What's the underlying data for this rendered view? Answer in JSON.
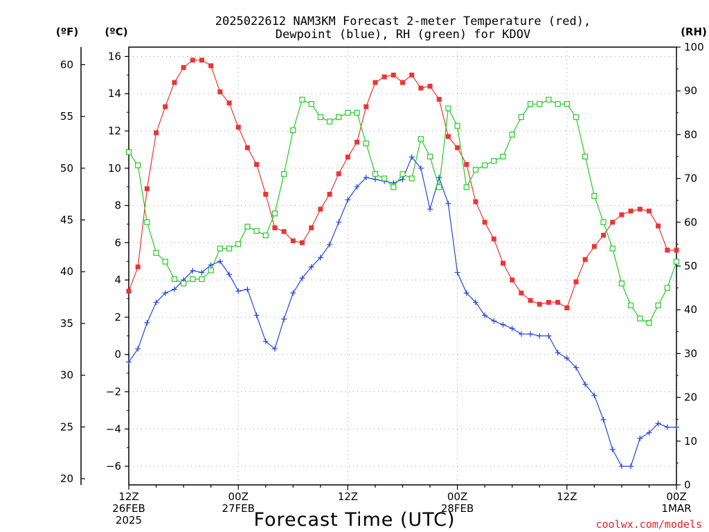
{
  "title": {
    "line1": "2025022612 NAM3KM Forecast 2-meter Temperature (red),",
    "line2": "Dewpoint (blue), RH (green) for KDOV"
  },
  "units": {
    "f": "(ºF)",
    "c": "(ºC)",
    "rh": "(RH)"
  },
  "xlabel": "Forecast Time (UTC)",
  "credit": "coolwx.com/models",
  "colors": {
    "temperature": "#ee3333",
    "dewpoint": "#2244dd",
    "rh": "#22cc22",
    "credit": "#dd2222"
  },
  "chart_data": {
    "type": "line",
    "x_unit": "forecast hour",
    "xlim": [
      0,
      60
    ],
    "x_ticks": [
      {
        "hour": 0,
        "lines": [
          "12Z",
          "26FEB",
          "2025"
        ]
      },
      {
        "hour": 12,
        "lines": [
          "00Z",
          "27FEB"
        ]
      },
      {
        "hour": 24,
        "lines": [
          "12Z"
        ]
      },
      {
        "hour": 36,
        "lines": [
          "00Z",
          "28FEB"
        ]
      },
      {
        "hour": 48,
        "lines": [
          "12Z"
        ]
      },
      {
        "hour": 60,
        "lines": [
          "00Z",
          "1MAR"
        ]
      }
    ],
    "y_celsius": {
      "lim": [
        -7,
        16.5
      ],
      "ticks": [
        "16",
        "14",
        "12",
        "10",
        "8",
        "6",
        "4",
        "2",
        "0",
        "−2",
        "−4",
        "−6"
      ]
    },
    "y_fahrenheit": {
      "lim": [
        19.4,
        61.7
      ],
      "ticks": [
        "60",
        "55",
        "50",
        "45",
        "40",
        "35",
        "30",
        "25",
        "20"
      ]
    },
    "y_rh": {
      "lim": [
        0,
        100
      ],
      "ticks": [
        "100",
        "90",
        "80",
        "70",
        "60",
        "50",
        "40",
        "30",
        "20",
        "10",
        "0"
      ]
    },
    "x": [
      0,
      1,
      2,
      3,
      4,
      5,
      6,
      7,
      8,
      9,
      10,
      11,
      12,
      13,
      14,
      15,
      16,
      17,
      18,
      19,
      20,
      21,
      22,
      23,
      24,
      25,
      26,
      27,
      28,
      29,
      30,
      31,
      32,
      33,
      34,
      35,
      36,
      37,
      38,
      39,
      40,
      41,
      42,
      43,
      44,
      45,
      46,
      47,
      48,
      49,
      50,
      51,
      52,
      53,
      54,
      55,
      56,
      57,
      58,
      59,
      60
    ],
    "series": [
      {
        "name": "2-meter Temperature",
        "unit": "C",
        "marker": "filled-square",
        "values": [
          3.4,
          4.7,
          8.9,
          11.9,
          13.3,
          14.6,
          15.4,
          15.8,
          15.8,
          15.5,
          14.1,
          13.5,
          12.2,
          11.1,
          10.2,
          8.6,
          6.8,
          6.6,
          6.1,
          6.0,
          6.8,
          7.8,
          8.6,
          9.7,
          10.6,
          11.4,
          13.3,
          14.6,
          14.9,
          15.0,
          14.6,
          15.0,
          14.3,
          14.4,
          13.7,
          11.7,
          11.1,
          10.2,
          8.2,
          7.1,
          6.2,
          4.9,
          4.0,
          3.3,
          2.9,
          2.7,
          2.8,
          2.8,
          2.5,
          3.9,
          5.1,
          5.8,
          6.4,
          7.1,
          7.5,
          7.7,
          7.8,
          7.7,
          6.9,
          5.6,
          5.6
        ]
      },
      {
        "name": "Dewpoint",
        "unit": "C",
        "marker": "plus",
        "values": [
          -0.4,
          0.3,
          1.7,
          2.8,
          3.3,
          3.5,
          4.0,
          4.5,
          4.4,
          4.8,
          5.0,
          4.3,
          3.4,
          3.5,
          2.1,
          0.7,
          0.3,
          1.9,
          3.3,
          4.1,
          4.7,
          5.2,
          5.9,
          7.1,
          8.3,
          9.0,
          9.5,
          9.4,
          9.3,
          9.2,
          9.4,
          10.6,
          10.0,
          7.8,
          9.5,
          8.1,
          4.4,
          3.3,
          2.8,
          2.1,
          1.8,
          1.6,
          1.4,
          1.1,
          1.1,
          1.0,
          1.0,
          0.1,
          -0.2,
          -0.7,
          -1.6,
          -2.2,
          -3.5,
          -5.1,
          -6.0,
          -6.0,
          -4.5,
          -4.2,
          -3.7,
          -3.9,
          -3.9
        ]
      },
      {
        "name": "RH",
        "unit": "%",
        "marker": "open-square",
        "values": [
          76,
          73,
          60,
          53,
          51,
          47,
          46,
          47,
          47,
          49,
          54,
          54,
          55,
          59,
          58,
          57,
          62,
          71,
          81,
          88,
          87,
          84,
          83,
          84,
          85,
          85,
          78,
          71,
          70,
          68,
          71,
          70,
          79,
          75,
          68,
          86,
          82,
          68,
          72,
          73,
          74,
          75,
          80,
          84,
          87,
          87,
          88,
          87,
          87,
          84,
          75,
          66,
          60,
          54,
          46,
          41,
          38,
          37,
          41,
          45,
          51
        ]
      }
    ]
  }
}
